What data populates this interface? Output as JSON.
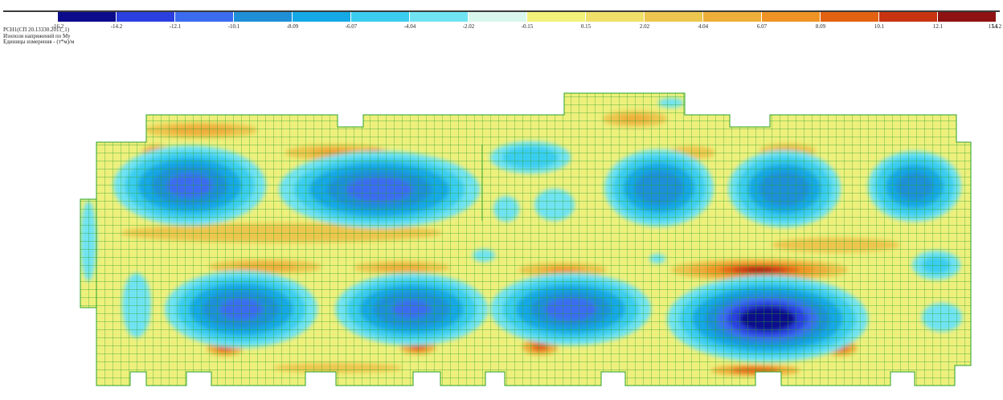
{
  "legend": {
    "colors": [
      "#0b0b8c",
      "#2b3fe0",
      "#3b6cf0",
      "#1f8fd8",
      "#14a8e6",
      "#3bcdf0",
      "#6fe3f2",
      "#d9f7ec",
      "#f2f27a",
      "#f0e06a",
      "#ecc64e",
      "#eeae3a",
      "#ef9424",
      "#e36212",
      "#c83412",
      "#8e1212"
    ],
    "ticks": [
      "-16.2",
      "-14.2",
      "-12.1",
      "-10.1",
      "-8.09",
      "-6.07",
      "-4.04",
      "-2.02",
      "-0.15",
      "0.15",
      "2.02",
      "4.04",
      "6.07",
      "8.09",
      "10.1",
      "12.1",
      "14.2",
      "15.1"
    ]
  },
  "info": {
    "load_case": "РСН1(СП 20.13330.2011_1)",
    "title": "Изополя напряжений по My",
    "units": "Единицы измерения - (т*м)/м"
  },
  "chart_data": {
    "type": "heatmap",
    "title": "Изополя напряжений по My",
    "units": "(т*м)/м",
    "load_case": "РСН1(СП 20.13330.2011_1)",
    "scale_min": -16.2,
    "scale_max": 15.1,
    "scale_ticks": [
      -16.2,
      -14.2,
      -12.1,
      -10.1,
      -8.09,
      -6.07,
      -4.04,
      -2.02,
      -0.15,
      0.15,
      2.02,
      4.04,
      6.07,
      8.09,
      10.1,
      12.1,
      14.2,
      15.1
    ],
    "extremes": {
      "min": -16.2,
      "max": 15.1
    }
  }
}
